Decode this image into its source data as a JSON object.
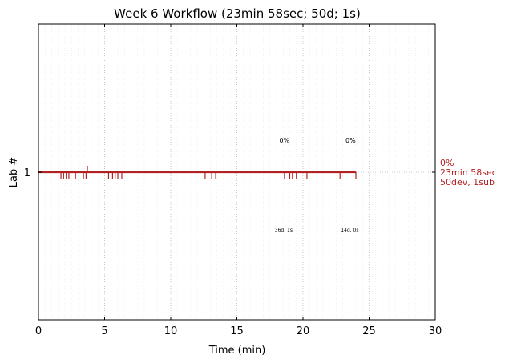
{
  "chart_data": {
    "type": "line",
    "title": "Week 6 Workflow (23min 58sec; 50d; 1s)",
    "xlabel": "Time (min)",
    "ylabel": "Lab #",
    "xlim": [
      0,
      30
    ],
    "xticks": [
      0,
      5,
      10,
      15,
      20,
      25,
      30
    ],
    "yticks": [
      1
    ],
    "grid": "dotted",
    "series": [
      {
        "color": "#b22222",
        "x": [
          0,
          24
        ],
        "y": [
          1,
          1
        ]
      }
    ],
    "down_ticks": [
      1.7,
      1.9,
      2.1,
      2.3,
      2.8,
      3.4,
      3.6,
      5.3,
      5.6,
      5.8,
      6.0,
      6.3,
      12.6,
      13.1,
      13.4,
      18.6,
      19.0,
      19.2,
      19.5,
      20.3,
      22.8,
      24.0
    ],
    "up_ticks": [
      3.7
    ],
    "segment_annotations": [
      {
        "x": 18.6,
        "percent": "0%",
        "detail": "36d, 1s"
      },
      {
        "x": 23.6,
        "percent": "0%",
        "detail": "14d, 0s"
      }
    ],
    "right_annotation": [
      "0%",
      "23min 58sec",
      "50dev, 1sub"
    ],
    "colors": {
      "line": "#b22222",
      "grid": "#bbbbbb"
    }
  }
}
